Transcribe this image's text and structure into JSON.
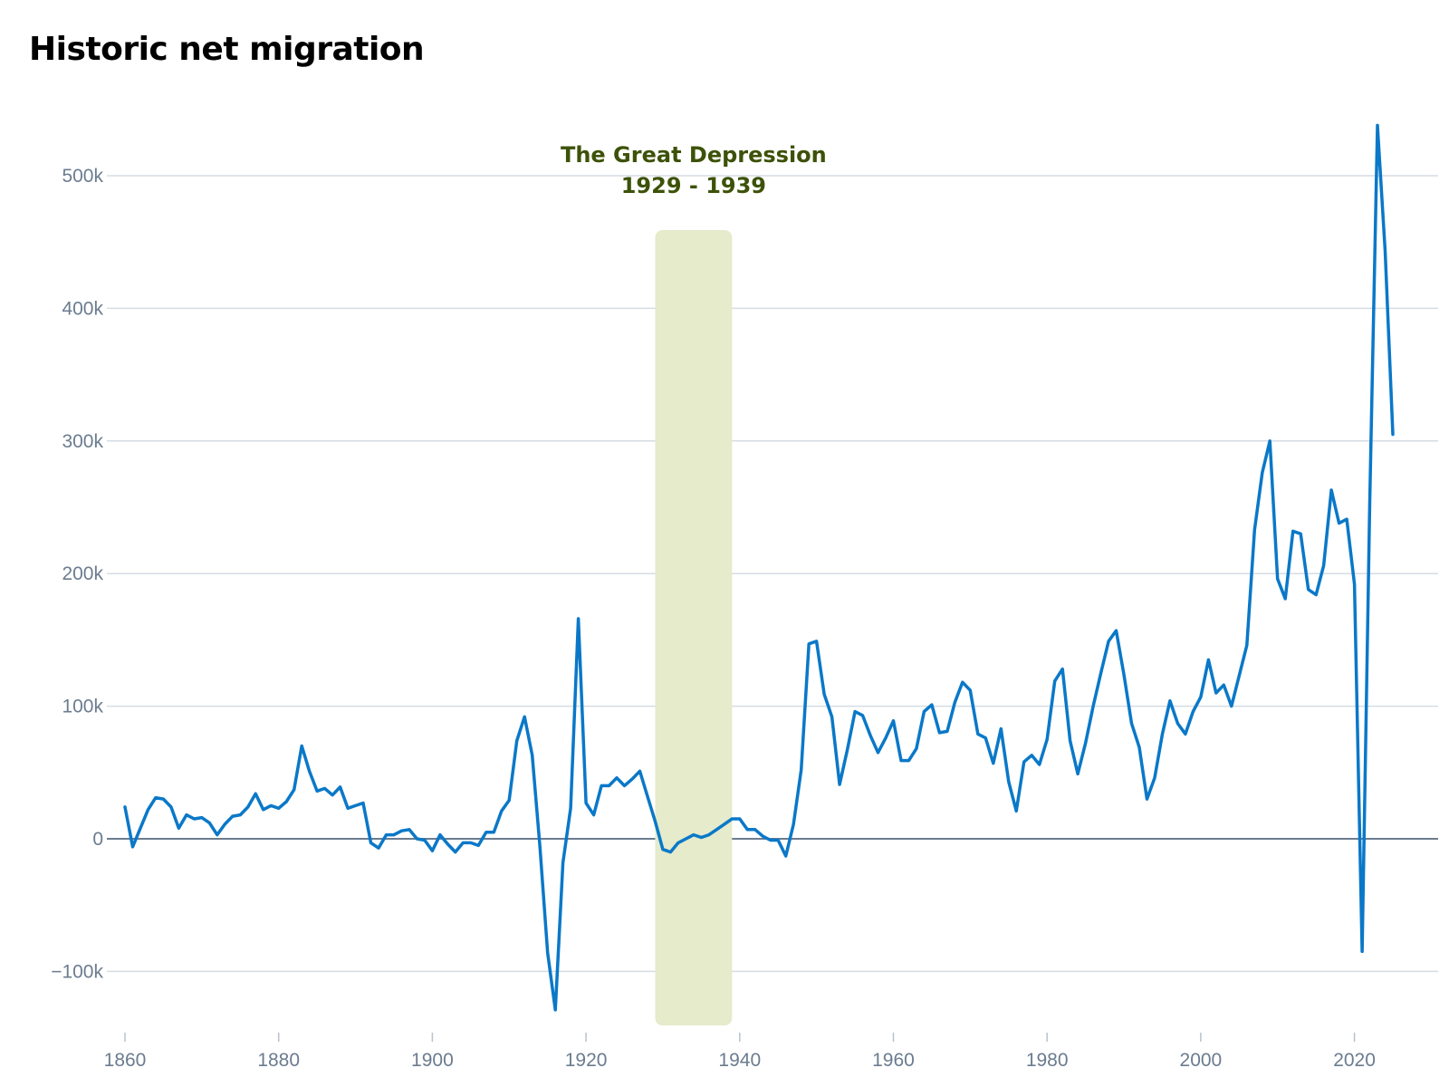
{
  "chart_data": {
    "type": "line",
    "title": "Historic net migration",
    "xlabel": "",
    "ylabel": "",
    "xlim": [
      1860,
      2025
    ],
    "ylim": [
      -140000,
      540000
    ],
    "x_ticks": [
      1860,
      1880,
      1900,
      1920,
      1940,
      1960,
      1980,
      2000,
      2020
    ],
    "y_ticks": [
      -100000,
      0,
      100000,
      200000,
      300000,
      400000,
      500000
    ],
    "y_tick_labels": [
      "−100k",
      "0",
      "100k",
      "200k",
      "300k",
      "400k",
      "500k"
    ],
    "grid": true,
    "legend": "none",
    "colors": {
      "line": "#0a78c8",
      "grid": "#d5dce3",
      "zero_line": "#6b7c8f",
      "highlight": "#e5ebcb",
      "annotation": "#3d5209",
      "tick_text": "#6b7c8f"
    },
    "annotation": {
      "label": "The Great Depression",
      "range_label": "1929 - 1939",
      "x_start": 1929,
      "x_end": 1939
    },
    "series": [
      {
        "x": [
          1860,
          1861,
          1862,
          1863,
          1864,
          1865,
          1866,
          1867,
          1868,
          1869,
          1870,
          1871,
          1872,
          1873,
          1874,
          1875,
          1876,
          1877,
          1878,
          1879,
          1880,
          1881,
          1882,
          1883,
          1884,
          1885,
          1886,
          1887,
          1888,
          1889,
          1890,
          1891,
          1892,
          1893,
          1894,
          1895,
          1896,
          1897,
          1898,
          1899,
          1900,
          1901,
          1902,
          1903,
          1904,
          1905,
          1906,
          1907,
          1908,
          1909,
          1910,
          1911,
          1912,
          1913,
          1914,
          1915,
          1916,
          1917,
          1918,
          1919,
          1920,
          1921,
          1922,
          1923,
          1924,
          1925,
          1926,
          1927,
          1928,
          1929,
          1930,
          1931,
          1932,
          1933,
          1934,
          1935,
          1936,
          1937,
          1938,
          1939,
          1940,
          1941,
          1942,
          1943,
          1944,
          1945,
          1946,
          1947,
          1948,
          1949,
          1950,
          1951,
          1952,
          1953,
          1954,
          1955,
          1956,
          1957,
          1958,
          1959,
          1960,
          1961,
          1962,
          1963,
          1964,
          1965,
          1966,
          1967,
          1968,
          1969,
          1970,
          1971,
          1972,
          1973,
          1974,
          1975,
          1976,
          1977,
          1978,
          1979,
          1980,
          1981,
          1982,
          1983,
          1984,
          1985,
          1986,
          1987,
          1988,
          1989,
          1990,
          1991,
          1992,
          1993,
          1994,
          1995,
          1996,
          1997,
          1998,
          1999,
          2000,
          2001,
          2002,
          2003,
          2004,
          2005,
          2006,
          2007,
          2008,
          2009,
          2010,
          2011,
          2012,
          2013,
          2014,
          2015,
          2016,
          2017,
          2018,
          2019,
          2020,
          2021,
          2022,
          2023,
          2024,
          2025
        ],
        "values": [
          24000,
          -6000,
          8000,
          22000,
          31000,
          30000,
          24000,
          8000,
          18000,
          15000,
          16000,
          12000,
          3000,
          11000,
          17000,
          18000,
          24000,
          34000,
          22000,
          25000,
          23000,
          28000,
          37000,
          70000,
          51000,
          36000,
          38000,
          33000,
          39000,
          23000,
          25000,
          27000,
          -3000,
          -7000,
          3000,
          3000,
          6000,
          7000,
          0,
          -1000,
          -9000,
          3000,
          -4000,
          -10000,
          -3000,
          -3000,
          -5000,
          5000,
          5000,
          21000,
          29000,
          74000,
          92000,
          63000,
          -6000,
          -86000,
          -129000,
          -18000,
          23000,
          166000,
          27000,
          18000,
          40000,
          40000,
          46000,
          40000,
          45000,
          51000,
          32000,
          13000,
          -8000,
          -10000,
          -3000,
          0,
          3000,
          1000,
          3000,
          7000,
          11000,
          15000,
          15000,
          7000,
          7000,
          2000,
          -1000,
          -1000,
          -13000,
          11000,
          52000,
          147000,
          149000,
          109000,
          92000,
          41000,
          67000,
          96000,
          93000,
          78000,
          65000,
          76000,
          89000,
          59000,
          59000,
          68000,
          96000,
          101000,
          80000,
          81000,
          103000,
          118000,
          112000,
          79000,
          76000,
          57000,
          83000,
          43000,
          21000,
          58000,
          63000,
          56000,
          75000,
          119000,
          128000,
          74000,
          49000,
          72000,
          100000,
          125000,
          149000,
          157000,
          124000,
          87000,
          69000,
          30000,
          46000,
          79000,
          104000,
          87000,
          79000,
          96000,
          107000,
          135000,
          110000,
          116000,
          100000,
          123000,
          146000,
          233000,
          276000,
          300000,
          196000,
          181000,
          232000,
          230000,
          188000,
          184000,
          206000,
          263000,
          238000,
          241000,
          192000,
          -85000,
          254000,
          538000,
          443000,
          305000
        ]
      }
    ]
  }
}
